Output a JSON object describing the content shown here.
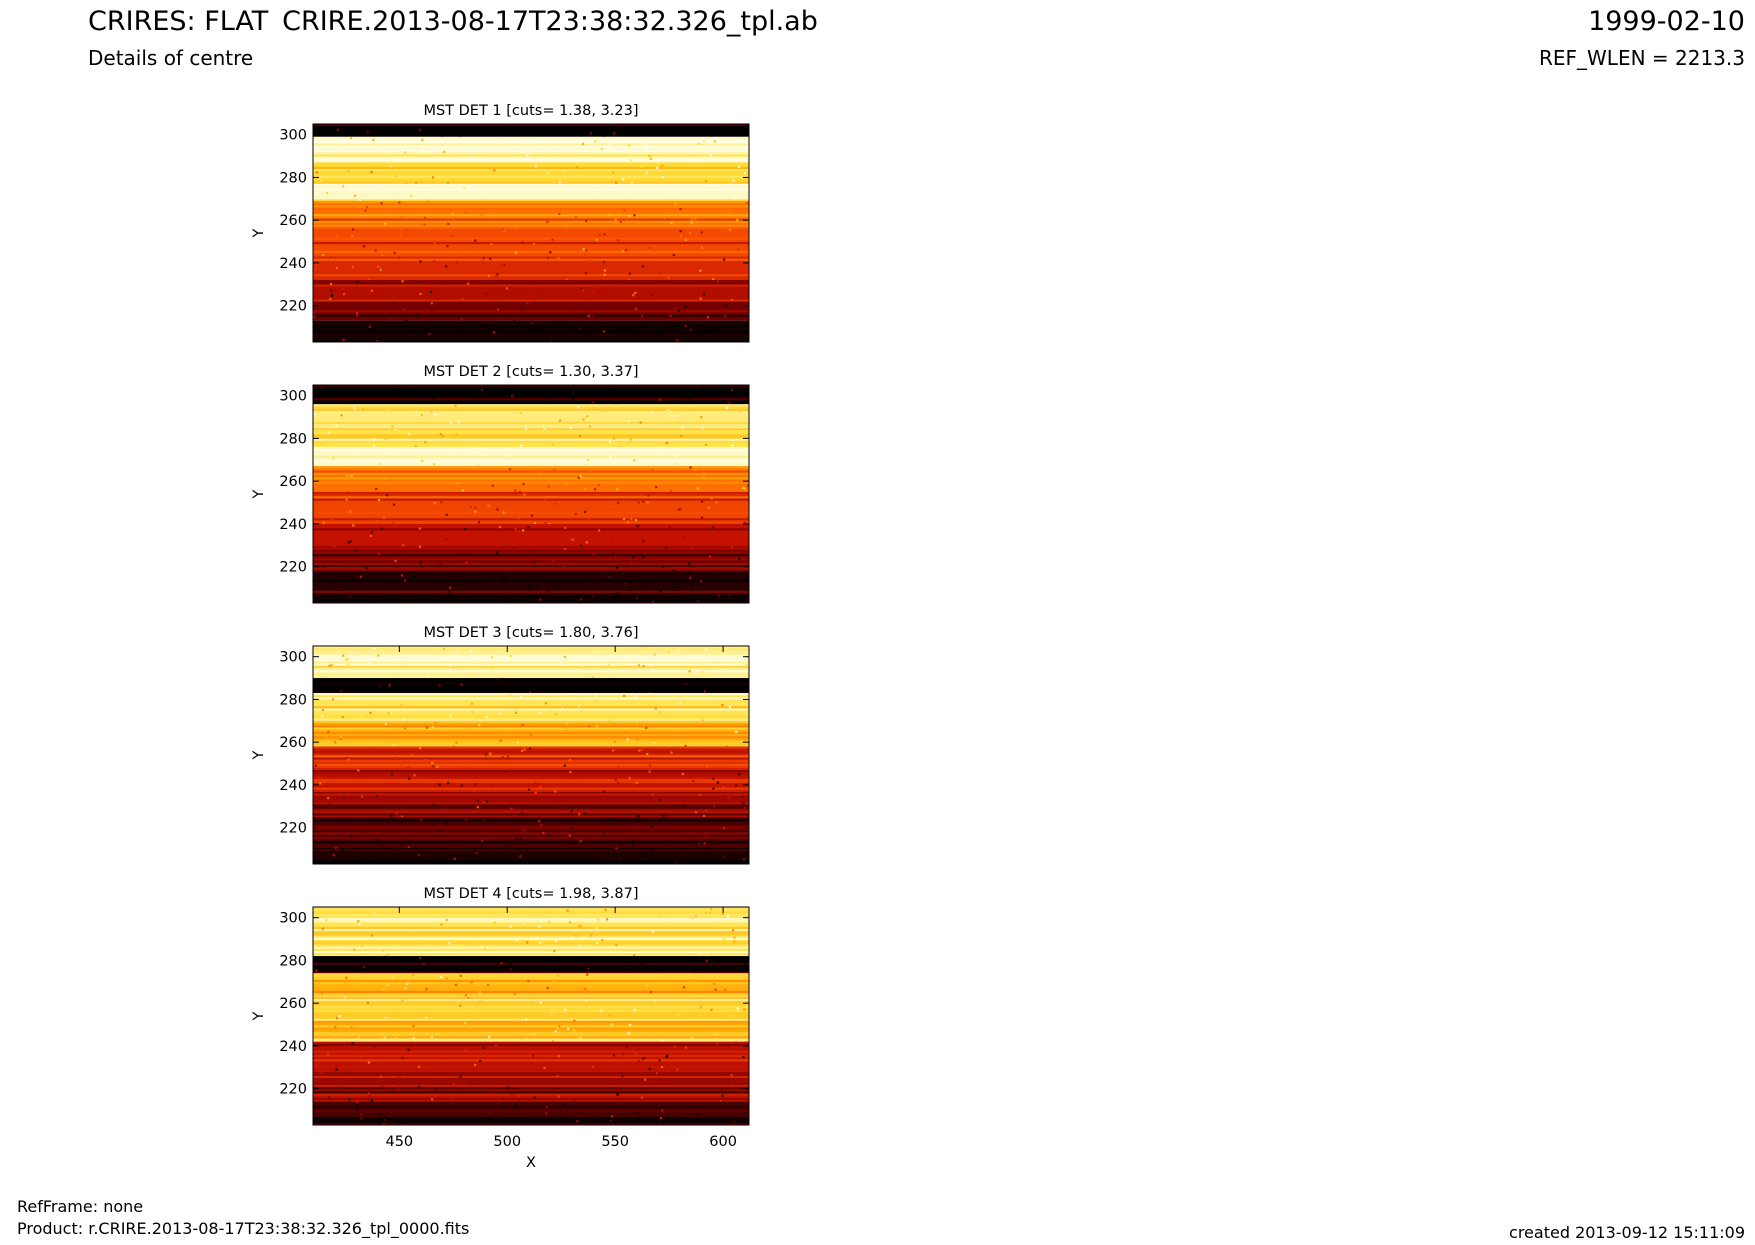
{
  "header": {
    "title": "CRIRES: FLAT",
    "file": "CRIRE.2013-08-17T23:38:32.326_tpl.ab",
    "date": "1999-02-10",
    "subtitle": "Details of centre",
    "ref_wlen": "REF_WLEN = 2213.3"
  },
  "footer": {
    "refframe": "RefFrame: none",
    "product": "Product: r.CRIRE.2013-08-17T23:38:32.326_tpl_0000.fits",
    "created": "created 2013-09-12 15:11:09"
  },
  "colors": {
    "colormap": [
      "#000000",
      "#7a0000",
      "#cc1400",
      "#ff5a00",
      "#ffa300",
      "#ffe03a",
      "#ffffe6"
    ]
  },
  "chart_data": [
    {
      "type": "heatmap",
      "title": "MST DET 1 [cuts= 1.38, 3.23]",
      "ylabel": "Y",
      "xlim": [
        410,
        612
      ],
      "ylim": [
        203,
        305
      ],
      "yticks": [
        300,
        280,
        260,
        240,
        220
      ],
      "xticks": [
        450,
        500,
        550,
        600
      ],
      "bands": [
        {
          "y": [
            299,
            305
          ],
          "level": 0.0
        },
        {
          "y": [
            287,
            299
          ],
          "level": 0.97
        },
        {
          "y": [
            277,
            287
          ],
          "level": 0.82
        },
        {
          "y": [
            269,
            277
          ],
          "level": 0.97
        },
        {
          "y": [
            257,
            269
          ],
          "level": 0.55
        },
        {
          "y": [
            243,
            257
          ],
          "level": 0.46
        },
        {
          "y": [
            232,
            243
          ],
          "level": 0.38
        },
        {
          "y": [
            222,
            232
          ],
          "level": 0.28
        },
        {
          "y": [
            213,
            222
          ],
          "level": 0.16
        },
        {
          "y": [
            203,
            213
          ],
          "level": 0.03
        }
      ]
    },
    {
      "type": "heatmap",
      "title": "MST DET 2 [cuts= 1.30, 3.37]",
      "ylabel": "Y",
      "xlim": [
        410,
        612
      ],
      "ylim": [
        203,
        305
      ],
      "yticks": [
        300,
        280,
        260,
        240,
        220
      ],
      "xticks": [
        450,
        500,
        550,
        600
      ],
      "bands": [
        {
          "y": [
            296,
            305
          ],
          "level": 0.0
        },
        {
          "y": [
            284,
            296
          ],
          "level": 0.9
        },
        {
          "y": [
            276,
            284
          ],
          "level": 0.85
        },
        {
          "y": [
            267,
            276
          ],
          "level": 0.97
        },
        {
          "y": [
            255,
            267
          ],
          "level": 0.55
        },
        {
          "y": [
            240,
            255
          ],
          "level": 0.45
        },
        {
          "y": [
            228,
            240
          ],
          "level": 0.32
        },
        {
          "y": [
            218,
            228
          ],
          "level": 0.18
        },
        {
          "y": [
            203,
            218
          ],
          "level": 0.05
        }
      ]
    },
    {
      "type": "heatmap",
      "title": "MST DET 3 [cuts= 1.80, 3.76]",
      "ylabel": "Y",
      "xlim": [
        410,
        612
      ],
      "ylim": [
        203,
        305
      ],
      "yticks": [
        300,
        280,
        260,
        240,
        220
      ],
      "xticks": [
        450,
        500,
        550,
        600
      ],
      "bands": [
        {
          "y": [
            290,
            305
          ],
          "level": 0.92
        },
        {
          "y": [
            283,
            290
          ],
          "level": 0.0
        },
        {
          "y": [
            270,
            283
          ],
          "level": 0.86
        },
        {
          "y": [
            258,
            270
          ],
          "level": 0.7
        },
        {
          "y": [
            248,
            258
          ],
          "level": 0.4
        },
        {
          "y": [
            236,
            248
          ],
          "level": 0.32
        },
        {
          "y": [
            225,
            236
          ],
          "level": 0.24
        },
        {
          "y": [
            210,
            225
          ],
          "level": 0.1
        },
        {
          "y": [
            203,
            210
          ],
          "level": 0.04
        }
      ]
    },
    {
      "type": "heatmap",
      "title": "MST DET 4 [cuts= 1.98, 3.87]",
      "ylabel": "Y",
      "xlabel": "X",
      "xlim": [
        410,
        612
      ],
      "ylim": [
        203,
        305
      ],
      "yticks": [
        300,
        280,
        260,
        240,
        220
      ],
      "xticks": [
        450,
        500,
        550,
        600
      ],
      "bands": [
        {
          "y": [
            282,
            305
          ],
          "level": 0.86
        },
        {
          "y": [
            274,
            282
          ],
          "level": 0.0
        },
        {
          "y": [
            262,
            274
          ],
          "level": 0.7
        },
        {
          "y": [
            242,
            262
          ],
          "level": 0.78
        },
        {
          "y": [
            228,
            242
          ],
          "level": 0.3
        },
        {
          "y": [
            214,
            228
          ],
          "level": 0.22
        },
        {
          "y": [
            203,
            214
          ],
          "level": 0.1
        }
      ]
    }
  ]
}
